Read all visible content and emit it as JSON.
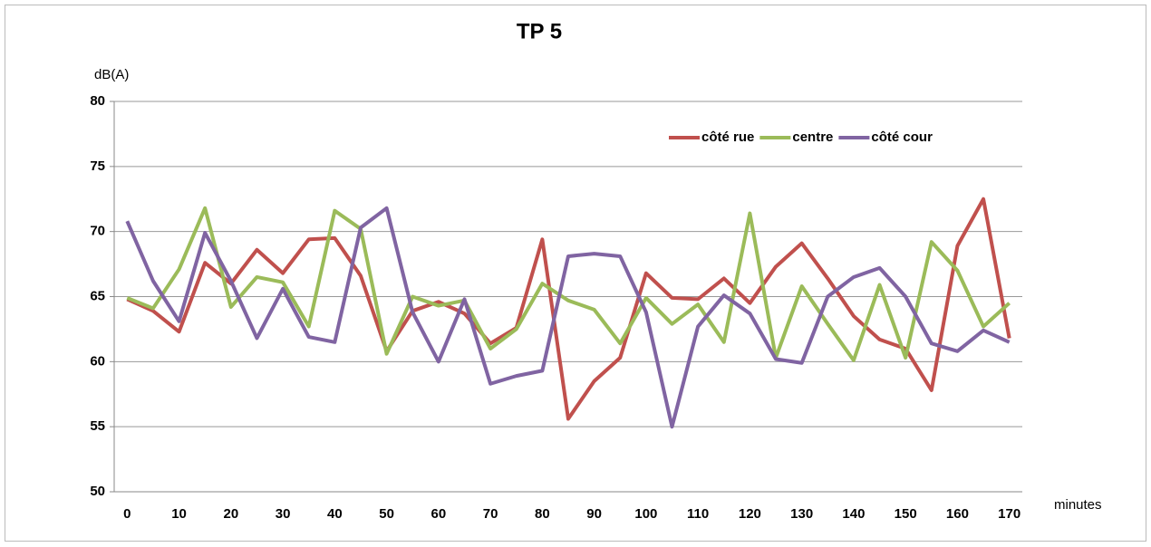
{
  "chart_data": {
    "type": "line",
    "title": "TP 5",
    "y_label": "dB(A)",
    "x_label": "minutes",
    "categories": [
      "0",
      null,
      "10",
      null,
      "20",
      null,
      "30",
      null,
      "40",
      null,
      "50",
      null,
      "60",
      null,
      "70",
      null,
      "80",
      null,
      "90",
      null,
      "100",
      null,
      "110",
      null,
      "120",
      null,
      "130",
      null,
      "140",
      null,
      "150",
      null,
      "160",
      null,
      "170"
    ],
    "series": [
      {
        "name": "côté rue",
        "color": "#c0504d",
        "values": [
          64.8,
          63.9,
          62.3,
          67.6,
          66.0,
          68.6,
          66.8,
          69.4,
          69.5,
          66.6,
          60.8,
          63.9,
          64.6,
          63.7,
          61.4,
          62.6,
          69.4,
          55.6,
          58.5,
          60.3,
          66.8,
          64.9,
          64.8,
          66.4,
          64.5,
          67.3,
          69.1,
          66.4,
          63.5,
          61.7,
          61.0,
          57.8,
          68.9,
          72.5,
          61.8
        ]
      },
      {
        "name": "centre",
        "color": "#9bbb59",
        "values": [
          64.9,
          64.1,
          67.1,
          71.8,
          64.2,
          66.5,
          66.1,
          62.7,
          71.6,
          70.2,
          60.6,
          65.0,
          64.3,
          64.7,
          61.0,
          62.5,
          66.0,
          64.7,
          64.0,
          61.4,
          64.9,
          62.9,
          64.4,
          61.5,
          71.4,
          60.3,
          65.8,
          62.9,
          60.1,
          65.9,
          60.3,
          69.2,
          67.0,
          62.7,
          64.5
        ]
      },
      {
        "name": "côté cour",
        "color": "#8064a2",
        "values": [
          70.8,
          66.2,
          63.1,
          69.9,
          66.2,
          61.8,
          65.6,
          61.9,
          61.5,
          70.3,
          71.8,
          63.8,
          60.0,
          64.8,
          58.3,
          58.9,
          59.3,
          68.1,
          68.3,
          68.1,
          63.8,
          55.0,
          62.7,
          65.1,
          63.7,
          60.2,
          59.9,
          65.0,
          66.5,
          67.2,
          65.0,
          61.4,
          60.8,
          62.4,
          61.5
        ]
      }
    ],
    "ylim": [
      50,
      80
    ],
    "yticks": [
      50,
      55,
      60,
      65,
      70,
      75,
      80
    ],
    "grid": true,
    "legend": "top-right"
  }
}
